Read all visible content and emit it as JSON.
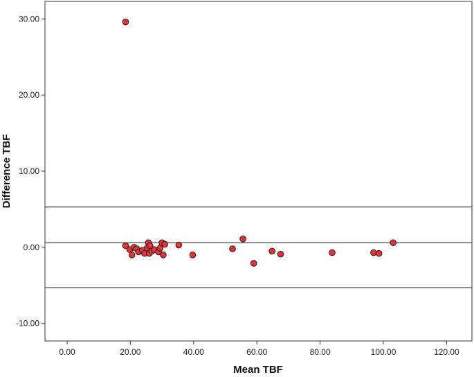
{
  "chart_data": {
    "type": "scatter",
    "title": "",
    "xlabel": "Mean TBF",
    "ylabel": "Difference TBF",
    "xlim": [
      -7,
      128
    ],
    "ylim": [
      -12.3,
      32.3
    ],
    "x_ticks": [
      0,
      20,
      40,
      60,
      80,
      100,
      120
    ],
    "y_ticks": [
      -10,
      0,
      10,
      20,
      30
    ],
    "x_tick_labels": [
      "0.00",
      "20.00",
      "40.00",
      "60.00",
      "80.00",
      "100.00",
      "120.00"
    ],
    "y_tick_labels": [
      "-10.00",
      "0.00",
      "10.00",
      "20.00",
      "30.00"
    ],
    "grid": false,
    "reference_lines": [
      {
        "y": 5.3
      },
      {
        "y": 0.6
      },
      {
        "y": -5.3
      }
    ],
    "series": [
      {
        "marker_color": "#e8323a",
        "marker_edge": "#1a1a1a",
        "points": [
          {
            "x": 18.5,
            "y": 29.6
          },
          {
            "x": 18.5,
            "y": 0.2
          },
          {
            "x": 19.8,
            "y": -0.3
          },
          {
            "x": 20.5,
            "y": -1.0
          },
          {
            "x": 21.2,
            "y": 0.0
          },
          {
            "x": 22.0,
            "y": -0.2
          },
          {
            "x": 22.6,
            "y": -0.6
          },
          {
            "x": 23.8,
            "y": -0.4
          },
          {
            "x": 24.5,
            "y": -0.8
          },
          {
            "x": 25.3,
            "y": -0.1
          },
          {
            "x": 25.7,
            "y": 0.6
          },
          {
            "x": 26.2,
            "y": 0.2
          },
          {
            "x": 26.0,
            "y": -0.8
          },
          {
            "x": 26.8,
            "y": -0.5
          },
          {
            "x": 27.6,
            "y": -0.3
          },
          {
            "x": 28.9,
            "y": -0.6
          },
          {
            "x": 29.4,
            "y": -0.1
          },
          {
            "x": 30.0,
            "y": 0.6
          },
          {
            "x": 30.4,
            "y": -1.0
          },
          {
            "x": 30.9,
            "y": 0.4
          },
          {
            "x": 35.3,
            "y": 0.3
          },
          {
            "x": 39.7,
            "y": -1.0
          },
          {
            "x": 52.3,
            "y": -0.2
          },
          {
            "x": 55.6,
            "y": 1.1
          },
          {
            "x": 59.0,
            "y": -2.1
          },
          {
            "x": 64.8,
            "y": -0.5
          },
          {
            "x": 67.5,
            "y": -0.9
          },
          {
            "x": 83.8,
            "y": -0.7
          },
          {
            "x": 96.9,
            "y": -0.7
          },
          {
            "x": 98.6,
            "y": -0.8
          },
          {
            "x": 103.1,
            "y": 0.6
          }
        ]
      }
    ]
  }
}
